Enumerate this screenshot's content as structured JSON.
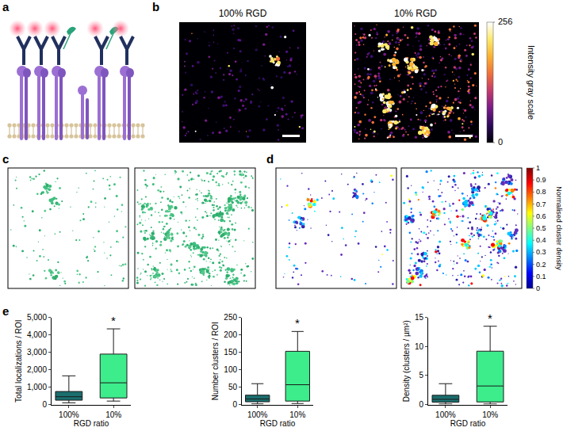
{
  "panel_labels": [
    "a",
    "b",
    "c",
    "d",
    "e"
  ],
  "image_titles": [
    "100% RGD",
    "10% RGD"
  ],
  "intensity_colorbar": {
    "title": "Intensity gray scale",
    "range": [
      0,
      256
    ],
    "ticks": [
      0,
      256
    ]
  },
  "density_colorbar": {
    "title": "Normalised cluster density",
    "range": [
      0,
      1
    ],
    "ticks": [
      0,
      0.1,
      0.2,
      0.3,
      0.4,
      0.5,
      0.6,
      0.7,
      0.8,
      0.9,
      1
    ]
  },
  "chart_data": [
    {
      "type": "box",
      "y_label": "Total localizations / ROI",
      "x_label": "RGD ratio",
      "categories": [
        "100%",
        "10%"
      ],
      "colors": [
        "#1b6e6e",
        "#3ded8c"
      ],
      "min": [
        100,
        200
      ],
      "q1": [
        250,
        380
      ],
      "median": [
        450,
        1250
      ],
      "q3": [
        750,
        2900
      ],
      "max": [
        1650,
        4350
      ],
      "annotations": [
        {
          "category": "10%",
          "text": "*"
        }
      ],
      "ylim": [
        0,
        5000
      ],
      "yticks": [
        0,
        {
          "value": 1000,
          "label": "1,000"
        },
        {
          "value": 2000,
          "label": "2,000"
        },
        {
          "value": 3000,
          "label": "3,000"
        },
        {
          "value": 4000,
          "label": "4,000"
        },
        {
          "value": 5000,
          "label": "5,000"
        }
      ],
      "grid": false
    },
    {
      "type": "box",
      "y_label": "Number clusters / ROI",
      "x_label": "RGD ratio",
      "categories": [
        "100%",
        "10%"
      ],
      "colors": [
        "#1b6e6e",
        "#3ded8c"
      ],
      "min": [
        2,
        3
      ],
      "q1": [
        8,
        10
      ],
      "median": [
        16,
        57
      ],
      "q3": [
        27,
        153
      ],
      "max": [
        60,
        210
      ],
      "annotations": [
        {
          "category": "10%",
          "text": "*"
        }
      ],
      "ylim": [
        0,
        250
      ],
      "yticks": [
        0,
        50,
        100,
        150,
        200,
        250
      ],
      "grid": false
    },
    {
      "type": "box",
      "y_label": "Density (clusters / µm²)",
      "x_label": "RGD ratio",
      "categories": [
        "100%",
        "10%"
      ],
      "colors": [
        "#1b6e6e",
        "#3ded8c"
      ],
      "min": [
        0.1,
        0.1
      ],
      "q1": [
        0.4,
        0.45
      ],
      "median": [
        0.9,
        3.2
      ],
      "q3": [
        1.6,
        9.2
      ],
      "max": [
        3.6,
        13.5
      ],
      "annotations": [
        {
          "category": "10%",
          "text": "*"
        }
      ],
      "ylim": [
        0,
        15
      ],
      "yticks": [
        0,
        5,
        10,
        15
      ],
      "grid": false
    }
  ]
}
